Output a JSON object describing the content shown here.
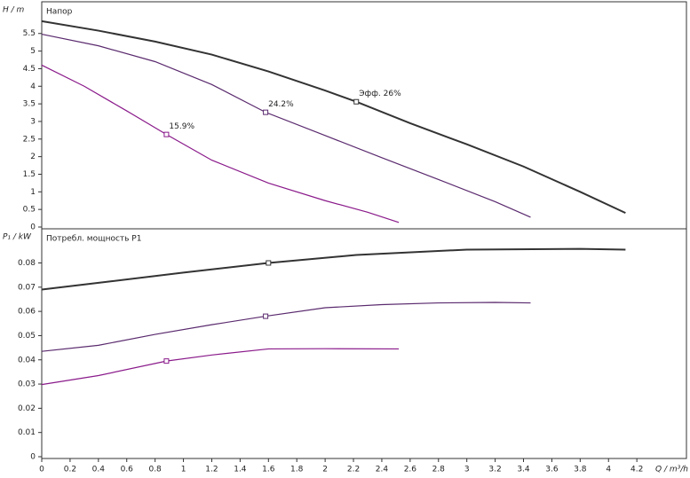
{
  "chart_data": [
    {
      "type": "line",
      "title": "Напор",
      "y_label": "H / m",
      "xlim": [
        0,
        4.55
      ],
      "ylim": [
        0,
        6.3
      ],
      "yticks": [
        0,
        0.5,
        1,
        1.5,
        2,
        2.5,
        3,
        3.5,
        4,
        4.5,
        5,
        5.5
      ],
      "series": [
        {
          "name": "Эфф. 26%",
          "color": "#333333",
          "marker_index": 6,
          "x": [
            0,
            0.4,
            0.8,
            1.2,
            1.6,
            2.0,
            2.22,
            2.6,
            3.0,
            3.4,
            3.8,
            4.12
          ],
          "values": [
            5.85,
            5.58,
            5.27,
            4.9,
            4.42,
            3.88,
            3.56,
            2.95,
            2.35,
            1.72,
            1.0,
            0.4
          ]
        },
        {
          "name": "24.2%",
          "color": "#5a2a6e",
          "marker_index": 4,
          "x": [
            0,
            0.4,
            0.8,
            1.2,
            1.58,
            2.0,
            2.4,
            2.8,
            3.2,
            3.45
          ],
          "values": [
            5.48,
            5.15,
            4.7,
            4.05,
            3.26,
            2.6,
            1.97,
            1.35,
            0.72,
            0.28
          ]
        },
        {
          "name": "15.9%",
          "color": "#8a1a8a",
          "marker_index": 3,
          "x": [
            0,
            0.3,
            0.6,
            0.88,
            1.2,
            1.6,
            2.0,
            2.3,
            2.52
          ],
          "values": [
            4.6,
            4.0,
            3.3,
            2.63,
            1.9,
            1.25,
            0.75,
            0.42,
            0.13
          ]
        }
      ]
    },
    {
      "type": "line",
      "title": "Потребл. мощность P1",
      "y_label": "P₁ / kW",
      "x_label": "Q / m³/h",
      "xlim": [
        0,
        4.55
      ],
      "ylim": [
        0,
        0.093
      ],
      "xticks": [
        0,
        0.2,
        0.4,
        0.6,
        0.8,
        1,
        1.2,
        1.4,
        1.6,
        1.8,
        2,
        2.2,
        2.4,
        2.6,
        2.8,
        3,
        3.2,
        3.4,
        3.6,
        3.8,
        4,
        4.2
      ],
      "yticks": [
        0,
        0.01,
        0.02,
        0.03,
        0.04,
        0.05,
        0.06,
        0.07,
        0.08
      ],
      "series": [
        {
          "color": "#333333",
          "marker_index": 3,
          "x": [
            0,
            0.5,
            1.0,
            1.6,
            2.22,
            3.0,
            3.8,
            4.12
          ],
          "values": [
            0.069,
            0.0725,
            0.076,
            0.08,
            0.0833,
            0.0855,
            0.0858,
            0.0855
          ]
        },
        {
          "color": "#5a2a6e",
          "marker_index": 4,
          "x": [
            0,
            0.4,
            0.8,
            1.2,
            1.58,
            2.0,
            2.4,
            2.8,
            3.2,
            3.45
          ],
          "values": [
            0.0435,
            0.046,
            0.0505,
            0.0545,
            0.058,
            0.0615,
            0.0628,
            0.0635,
            0.0637,
            0.0635
          ]
        },
        {
          "color": "#8a1a8a",
          "marker_index": 2,
          "x": [
            0,
            0.4,
            0.88,
            1.2,
            1.6,
            2.0,
            2.52
          ],
          "values": [
            0.0298,
            0.0335,
            0.0395,
            0.042,
            0.0445,
            0.0446,
            0.0445
          ]
        }
      ]
    }
  ]
}
